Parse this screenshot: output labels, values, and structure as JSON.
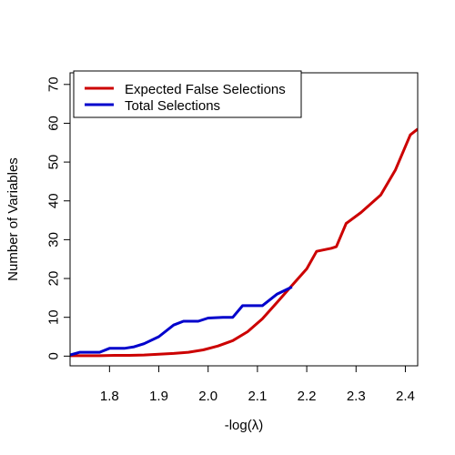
{
  "chart_data": {
    "type": "line",
    "title": "",
    "xlabel": "-log(λ)",
    "ylabel": "Number of Variables",
    "xlim": [
      1.72,
      2.425
    ],
    "ylim": [
      -2.5,
      73
    ],
    "xticks": [
      "1.8",
      "1.9",
      "2.0",
      "2.1",
      "2.2",
      "2.3",
      "2.4"
    ],
    "yticks": [
      "0",
      "10",
      "20",
      "30",
      "40",
      "50",
      "60",
      "70"
    ],
    "grid": false,
    "legend_position": "top-left",
    "series": [
      {
        "name": "Expected False Selections",
        "color": "#cc0000",
        "x": [
          1.72,
          1.75,
          1.78,
          1.81,
          1.84,
          1.87,
          1.9,
          1.93,
          1.96,
          1.99,
          2.02,
          2.05,
          2.08,
          2.11,
          2.14,
          2.17,
          2.2,
          2.22,
          2.25,
          2.26,
          2.28,
          2.31,
          2.35,
          2.38,
          2.41,
          2.425
        ],
        "y": [
          0.1,
          0.1,
          0.1,
          0.2,
          0.2,
          0.3,
          0.5,
          0.7,
          1.0,
          1.6,
          2.6,
          4.0,
          6.3,
          9.6,
          13.9,
          18.2,
          22.5,
          27.0,
          27.8,
          28.2,
          34.2,
          37.0,
          41.5,
          48.0,
          57.0,
          58.5
        ]
      },
      {
        "name": "Total Selections",
        "color": "#0000cc",
        "x": [
          1.72,
          1.74,
          1.78,
          1.8,
          1.83,
          1.85,
          1.87,
          1.9,
          1.93,
          1.95,
          1.98,
          2.0,
          2.03,
          2.05,
          2.07,
          2.09,
          2.11,
          2.14,
          2.17
        ],
        "y": [
          0.3,
          1.0,
          1.0,
          2.0,
          2.0,
          2.4,
          3.2,
          5.0,
          8.0,
          9.0,
          9.0,
          9.8,
          10.0,
          10.0,
          13.0,
          13.0,
          13.0,
          16.0,
          17.8
        ]
      }
    ]
  }
}
